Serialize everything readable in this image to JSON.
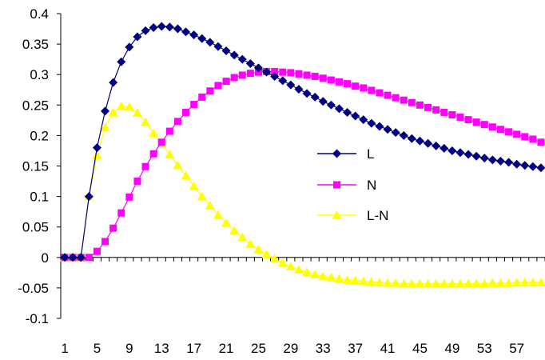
{
  "chart_data": {
    "type": "line",
    "title": "",
    "xlabel": "",
    "ylabel": "",
    "x": [
      1,
      2,
      3,
      4,
      5,
      6,
      7,
      8,
      9,
      10,
      11,
      12,
      13,
      14,
      15,
      16,
      17,
      18,
      19,
      20,
      21,
      22,
      23,
      24,
      25,
      26,
      27,
      28,
      29,
      30,
      31,
      32,
      33,
      34,
      35,
      36,
      37,
      38,
      39,
      40,
      41,
      42,
      43,
      44,
      45,
      46,
      47,
      48,
      49,
      50,
      51,
      52,
      53,
      54,
      55,
      56,
      57,
      58,
      59,
      60
    ],
    "x_tick_labels": [
      "1",
      "5",
      "9",
      "13",
      "17",
      "21",
      "25",
      "29",
      "33",
      "37",
      "41",
      "45",
      "49",
      "53",
      "57"
    ],
    "y_tick_labels": [
      "0.4",
      "0.35",
      "0.3",
      "0.25",
      "0.2",
      "0.15",
      "0.1",
      "0.05",
      "0",
      "-0.05",
      "-0.1"
    ],
    "ylim": [
      -0.1,
      0.4
    ],
    "y_step": 0.05,
    "grid": false,
    "legend_position": "center-right",
    "series": [
      {
        "name": "L",
        "color": "#000080",
        "marker": "diamond",
        "values": [
          0,
          0,
          0,
          0.1,
          0.18,
          0.24,
          0.287,
          0.321,
          0.345,
          0.362,
          0.372,
          0.377,
          0.379,
          0.378,
          0.375,
          0.37,
          0.365,
          0.359,
          0.353,
          0.346,
          0.339,
          0.332,
          0.325,
          0.318,
          0.311,
          0.304,
          0.297,
          0.29,
          0.283,
          0.276,
          0.269,
          0.263,
          0.256,
          0.25,
          0.244,
          0.238,
          0.232,
          0.226,
          0.22,
          0.215,
          0.21,
          0.205,
          0.2,
          0.195,
          0.191,
          0.187,
          0.183,
          0.179,
          0.175,
          0.172,
          0.169,
          0.166,
          0.163,
          0.16,
          0.158,
          0.156,
          0.153,
          0.151,
          0.149,
          0.147
        ]
      },
      {
        "name": "N",
        "color": "#FF00FF",
        "marker": "square",
        "values": [
          0,
          0,
          0,
          0,
          0.01,
          0.026,
          0.048,
          0.073,
          0.099,
          0.125,
          0.149,
          0.17,
          0.189,
          0.207,
          0.223,
          0.238,
          0.251,
          0.263,
          0.273,
          0.282,
          0.289,
          0.295,
          0.299,
          0.302,
          0.304,
          0.305,
          0.305,
          0.304,
          0.303,
          0.301,
          0.299,
          0.297,
          0.294,
          0.291,
          0.288,
          0.285,
          0.281,
          0.278,
          0.274,
          0.27,
          0.266,
          0.262,
          0.258,
          0.254,
          0.25,
          0.246,
          0.242,
          0.238,
          0.234,
          0.23,
          0.226,
          0.222,
          0.218,
          0.214,
          0.21,
          0.206,
          0.202,
          0.198,
          0.194,
          0.189
        ]
      },
      {
        "name": "L-N",
        "color": "#FFFF00",
        "marker": "triangle",
        "values": [
          0,
          0,
          0,
          0.1,
          0.168,
          0.213,
          0.238,
          0.248,
          0.247,
          0.237,
          0.222,
          0.204,
          0.187,
          0.169,
          0.151,
          0.134,
          0.117,
          0.1,
          0.085,
          0.07,
          0.057,
          0.044,
          0.033,
          0.022,
          0.013,
          0.005,
          -0.002,
          -0.009,
          -0.015,
          -0.02,
          -0.024,
          -0.028,
          -0.031,
          -0.033,
          -0.035,
          -0.037,
          -0.038,
          -0.039,
          -0.04,
          -0.041,
          -0.042,
          -0.042,
          -0.043,
          -0.043,
          -0.043,
          -0.043,
          -0.043,
          -0.043,
          -0.043,
          -0.043,
          -0.043,
          -0.043,
          -0.043,
          -0.042,
          -0.042,
          -0.042,
          -0.041,
          -0.041,
          -0.041,
          -0.041
        ]
      }
    ]
  }
}
